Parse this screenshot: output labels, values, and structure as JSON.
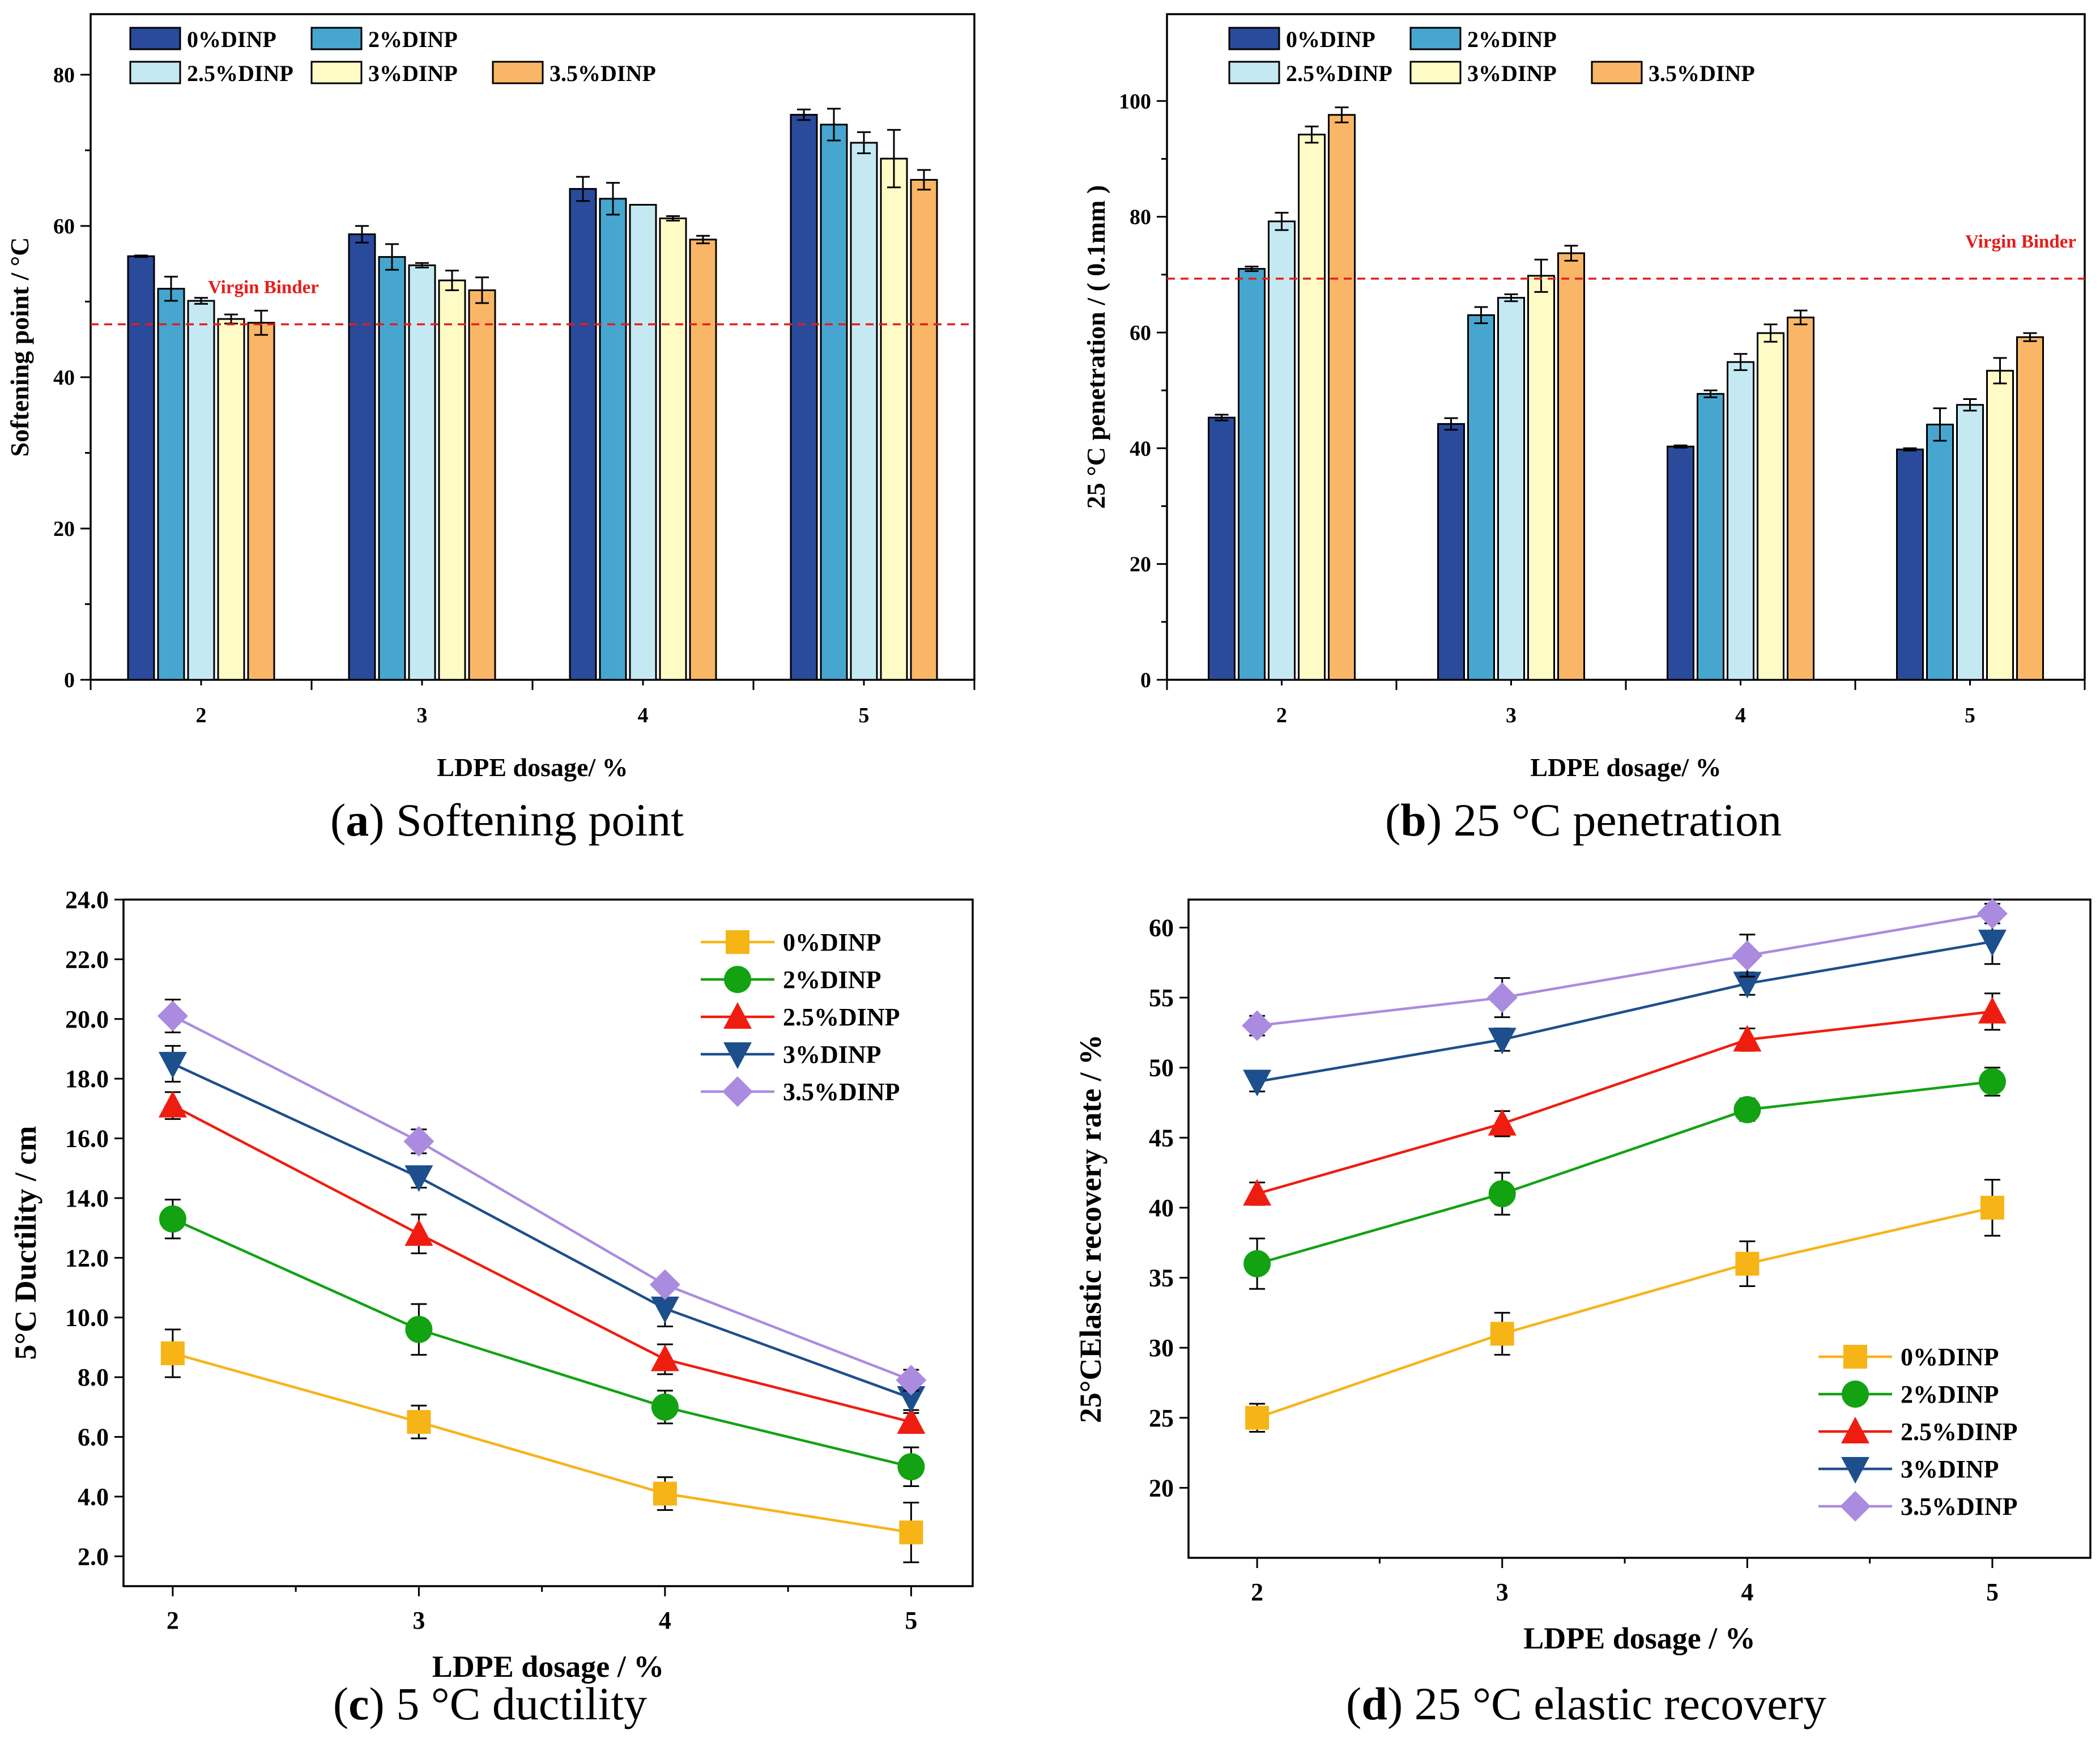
{
  "colors": {
    "dinp0_bar": "#2a4a9c",
    "dinp2_bar": "#47a6cf",
    "dinp25_bar": "#c5e9f2",
    "dinp3_bar": "#fffbc6",
    "dinp35_bar": "#f9b666",
    "dinp0_line": "#f6b417",
    "dinp2_line": "#12a212",
    "dinp25_line": "#ef1d10",
    "dinp3_line": "#1c4f8c",
    "dinp35_line": "#ab8be0",
    "reference_line": "#e51c1c"
  },
  "chart_data": [
    {
      "id": "a",
      "type": "bar",
      "caption_letter": "a",
      "caption_text": " Softening point",
      "title": "",
      "xlabel": "LDPE dosage/ %",
      "ylabel": "Softening point / °C",
      "ylim": [
        0,
        88
      ],
      "yticks": [
        0,
        20,
        40,
        60,
        80
      ],
      "ytick_labels": [
        "0",
        "20",
        "40",
        "60",
        "80"
      ],
      "categories": [
        "2",
        "3",
        "4",
        "5"
      ],
      "legend": [
        "0%DINP",
        "2%DINP",
        "2.5%DINP",
        "3%DINP",
        "3.5%DINP"
      ],
      "legend_position": "top-left",
      "series": [
        {
          "name": "0%DINP",
          "values": [
            56.0,
            58.9,
            64.9,
            74.7
          ],
          "errors": [
            0.1,
            1.1,
            1.6,
            0.7
          ]
        },
        {
          "name": "2%DINP",
          "values": [
            51.7,
            55.9,
            63.6,
            73.4
          ],
          "errors": [
            1.6,
            1.7,
            2.1,
            2.1
          ]
        },
        {
          "name": "2.5%DINP",
          "values": [
            50.1,
            54.8,
            62.8,
            71.0
          ],
          "errors": [
            0.4,
            0.3,
            0.0,
            1.4
          ]
        },
        {
          "name": "3%DINP",
          "values": [
            47.7,
            52.8,
            61.0,
            68.9
          ],
          "errors": [
            0.6,
            1.3,
            0.3,
            3.8
          ]
        },
        {
          "name": "3.5%DINP",
          "values": [
            47.2,
            51.5,
            58.2,
            66.1
          ],
          "errors": [
            1.6,
            1.7,
            0.5,
            1.3
          ]
        }
      ],
      "reference": {
        "label": "Virgin Binder",
        "value": 47.0
      }
    },
    {
      "id": "b",
      "type": "bar",
      "caption_letter": "b",
      "caption_text": " 25 °C penetration",
      "title": "",
      "xlabel": "LDPE dosage/ %",
      "ylabel": "25 °C penetration / ( 0.1mm )",
      "ylim": [
        0,
        115
      ],
      "yticks": [
        0,
        20,
        40,
        60,
        80,
        100
      ],
      "ytick_labels": [
        "0",
        "20",
        "40",
        "60",
        "80",
        "100"
      ],
      "categories": [
        "2",
        "3",
        "4",
        "5"
      ],
      "legend": [
        "0%DINP",
        "2%DINP",
        "2.5%DINP",
        "3%DINP",
        "3.5%DINP"
      ],
      "legend_position": "top-left",
      "series": [
        {
          "name": "0%DINP",
          "values": [
            45.3,
            44.2,
            40.3,
            39.8
          ],
          "errors": [
            0.5,
            1.0,
            0.2,
            0.2
          ]
        },
        {
          "name": "2%DINP",
          "values": [
            71.0,
            63.0,
            49.4,
            44.1
          ],
          "errors": [
            0.4,
            1.4,
            0.6,
            2.8
          ]
        },
        {
          "name": "2.5%DINP",
          "values": [
            79.2,
            66.0,
            54.9,
            47.5
          ],
          "errors": [
            1.5,
            0.6,
            1.4,
            1.0
          ]
        },
        {
          "name": "3%DINP",
          "values": [
            94.2,
            69.8,
            59.9,
            53.4
          ],
          "errors": [
            1.4,
            2.8,
            1.5,
            2.2
          ]
        },
        {
          "name": "3.5%DINP",
          "values": [
            97.6,
            73.7,
            62.6,
            59.2
          ],
          "errors": [
            1.3,
            1.3,
            1.2,
            0.7
          ]
        }
      ],
      "reference": {
        "label": "Virgin Binder",
        "value": 69.3
      }
    },
    {
      "id": "c",
      "type": "line",
      "caption_letter": "c",
      "caption_text": " 5 °C ductility",
      "title": "",
      "xlabel": "LDPE dosage / %",
      "ylabel": "5°C Ductility / cm",
      "x": [
        2,
        3,
        4,
        5
      ],
      "xticks": [
        "2",
        "3",
        "4",
        "5"
      ],
      "xlim": [
        1.8,
        5.25
      ],
      "ylim": [
        1.0,
        24.0
      ],
      "yticks": [
        2,
        4,
        6,
        8,
        10,
        12,
        14,
        16,
        18,
        20,
        22,
        24
      ],
      "ytick_labels": [
        "2.0",
        "4.0",
        "6.0",
        "8.0",
        "10.0",
        "12.0",
        "14.0",
        "16.0",
        "18.0",
        "20.0",
        "22.0",
        "24.0"
      ],
      "legend": [
        "0%DINP",
        "2%DINP",
        "2.5%DINP",
        "3%DINP",
        "3.5%DINP"
      ],
      "legend_position": "top-right",
      "series": [
        {
          "name": "0%DINP",
          "marker": "square",
          "values": [
            8.8,
            6.5,
            4.1,
            2.8
          ],
          "errors": [
            0.8,
            0.55,
            0.55,
            1.0
          ]
        },
        {
          "name": "2%DINP",
          "marker": "circle",
          "values": [
            13.3,
            9.6,
            7.0,
            5.0
          ],
          "errors": [
            0.65,
            0.85,
            0.55,
            0.65
          ]
        },
        {
          "name": "2.5%DINP",
          "marker": "triangle-up",
          "values": [
            17.1,
            12.8,
            8.6,
            6.5
          ],
          "errors": [
            0.45,
            0.65,
            0.5,
            0.3
          ]
        },
        {
          "name": "3%DINP",
          "marker": "triangle-down",
          "values": [
            18.5,
            14.7,
            10.3,
            7.3
          ],
          "errors": [
            0.6,
            0.35,
            0.6,
            0.4
          ]
        },
        {
          "name": "3.5%DINP",
          "marker": "diamond",
          "values": [
            20.1,
            15.9,
            11.1,
            7.9
          ],
          "errors": [
            0.55,
            0.4,
            0.2,
            0.35
          ]
        }
      ]
    },
    {
      "id": "d",
      "type": "line",
      "caption_letter": "d",
      "caption_text": " 25 °C elastic recovery",
      "title": "",
      "xlabel": "LDPE dosage / %",
      "ylabel": "25°CElastic recovery rate / %",
      "x": [
        2,
        3,
        4,
        5
      ],
      "xticks": [
        "2",
        "3",
        "4",
        "5"
      ],
      "xlim": [
        1.72,
        5.4
      ],
      "ylim": [
        15,
        62
      ],
      "yticks": [
        20,
        25,
        30,
        35,
        40,
        45,
        50,
        55,
        60
      ],
      "ytick_labels": [
        "20",
        "25",
        "30",
        "35",
        "40",
        "45",
        "50",
        "55",
        "60"
      ],
      "legend": [
        "0%DINP",
        "2%DINP",
        "2.5%DINP",
        "3%DINP",
        "3.5%DINP"
      ],
      "legend_position": "bottom-right",
      "series": [
        {
          "name": "0%DINP",
          "marker": "square",
          "values": [
            25,
            31,
            36,
            40
          ],
          "errors": [
            1.0,
            1.5,
            1.6,
            2.0
          ]
        },
        {
          "name": "2%DINP",
          "marker": "circle",
          "values": [
            36,
            41,
            47,
            49
          ],
          "errors": [
            1.8,
            1.5,
            0.8,
            1.0
          ]
        },
        {
          "name": "2.5%DINP",
          "marker": "triangle-up",
          "values": [
            41,
            46,
            52,
            54
          ],
          "errors": [
            0.8,
            0.9,
            0.8,
            1.3
          ]
        },
        {
          "name": "3%DINP",
          "marker": "triangle-down",
          "values": [
            49,
            52,
            56,
            59
          ],
          "errors": [
            0.7,
            0.8,
            0.8,
            1.6
          ]
        },
        {
          "name": "3.5%DINP",
          "marker": "diamond",
          "values": [
            53,
            55,
            58,
            61
          ],
          "errors": [
            0.7,
            1.4,
            1.5,
            0.7
          ]
        }
      ]
    }
  ]
}
